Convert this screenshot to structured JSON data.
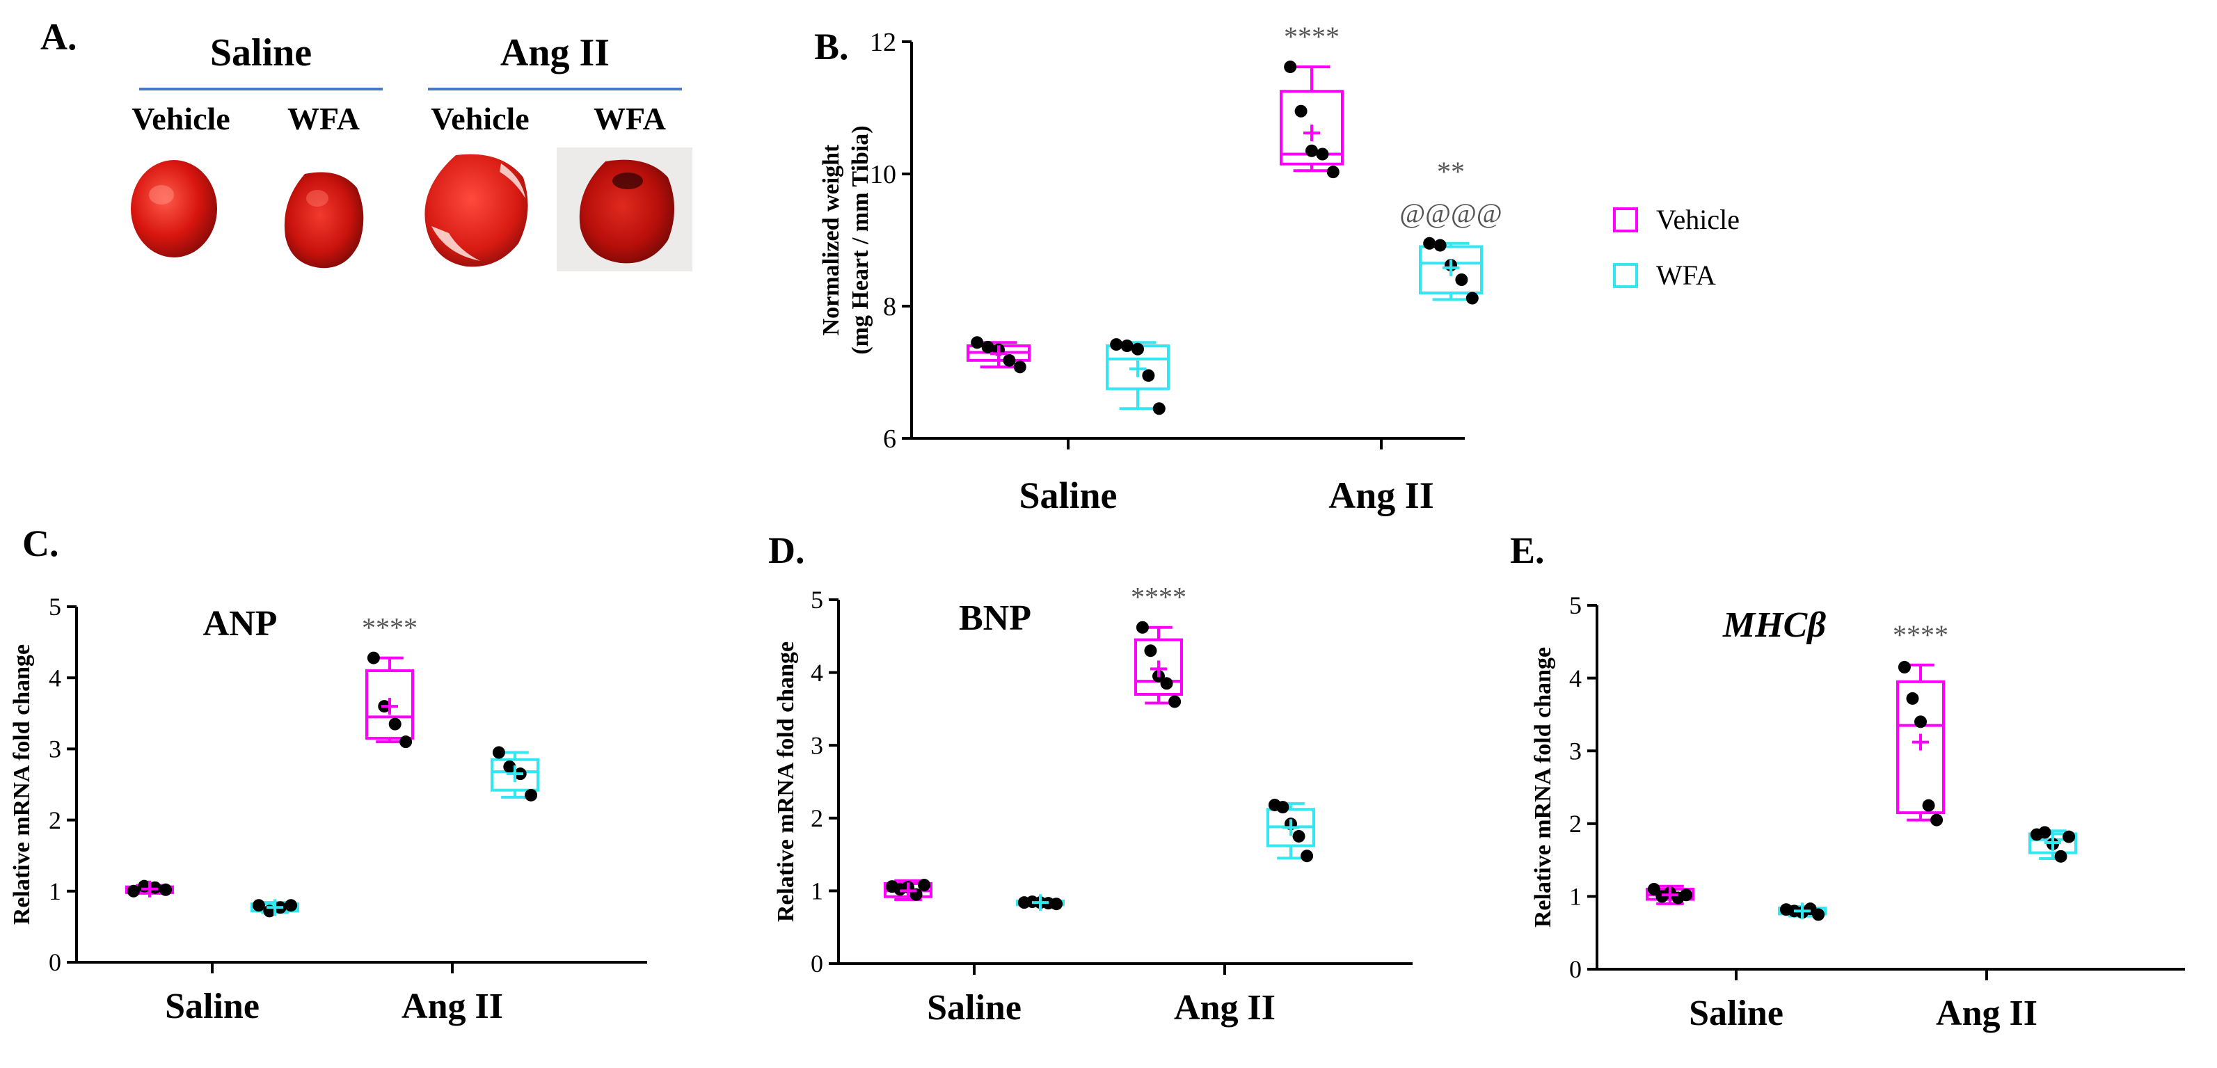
{
  "panels": {
    "A": "A.",
    "B": "B.",
    "C": "C.",
    "D": "D.",
    "E": "E."
  },
  "panelA": {
    "groups": [
      "Saline",
      "Ang II"
    ],
    "columns": [
      "Vehicle",
      "WFA",
      "Vehicle",
      "WFA"
    ]
  },
  "legend": {
    "entries": [
      {
        "label": "Vehicle",
        "color": "#ff00ff"
      },
      {
        "label": "WFA",
        "color": "#33e6f0"
      }
    ]
  },
  "colors": {
    "vehicle": "#ff00ff",
    "wfa": "#33e6f0",
    "dot": "#000000",
    "group_line": "#4a78c9"
  },
  "chart_data": [
    {
      "panel": "B",
      "type": "box",
      "title": "",
      "ylabel_line1": "Normalized weight",
      "ylabel_line2": "(mg Heart / mm Tibia)",
      "ylim": [
        6,
        12
      ],
      "yticks": [
        "6",
        "8",
        "10",
        "12"
      ],
      "categories": [
        "Saline",
        "Ang II"
      ],
      "series": [
        {
          "name": "Vehicle",
          "boxes": [
            {
              "min": 7.08,
              "q1": 7.18,
              "median": 7.3,
              "q3": 7.4,
              "max": 7.45,
              "mean": 7.28,
              "points": [
                7.45,
                7.38,
                7.34,
                7.18,
                7.08
              ]
            },
            {
              "min": 10.05,
              "q1": 10.15,
              "median": 10.3,
              "q3": 11.25,
              "max": 11.62,
              "mean": 10.62,
              "points": [
                11.62,
                10.95,
                10.35,
                10.3,
                10.03
              ]
            }
          ]
        },
        {
          "name": "WFA",
          "boxes": [
            {
              "min": 6.45,
              "q1": 6.75,
              "median": 7.2,
              "q3": 7.4,
              "max": 7.45,
              "mean": 7.05,
              "points": [
                7.42,
                7.4,
                7.35,
                6.95,
                6.45
              ]
            },
            {
              "min": 8.1,
              "q1": 8.2,
              "median": 8.65,
              "q3": 8.9,
              "max": 8.95,
              "mean": 8.58,
              "points": [
                8.95,
                8.92,
                8.62,
                8.4,
                8.12
              ]
            }
          ]
        }
      ],
      "annotations": [
        {
          "category": 1,
          "series": 0,
          "text": "****"
        },
        {
          "category": 1,
          "series": 1,
          "text": "**"
        },
        {
          "category": 1,
          "series": 1,
          "text": "@@@@",
          "row": 2
        }
      ]
    },
    {
      "panel": "C",
      "type": "box",
      "title": "ANP",
      "ylabel": "Relative mRNA fold change",
      "ylim": [
        0,
        5
      ],
      "yticks": [
        "0",
        "1",
        "2",
        "3",
        "4",
        "5"
      ],
      "categories": [
        "Saline",
        "Ang II"
      ],
      "series": [
        {
          "name": "Vehicle",
          "boxes": [
            {
              "min": 0.97,
              "q1": 0.98,
              "median": 1.02,
              "q3": 1.06,
              "max": 1.08,
              "mean": 1.03,
              "points": [
                1.0,
                1.07,
                1.05,
                1.02
              ]
            },
            {
              "min": 3.1,
              "q1": 3.15,
              "median": 3.45,
              "q3": 4.1,
              "max": 4.28,
              "mean": 3.6,
              "points": [
                4.28,
                3.6,
                3.35,
                3.1
              ]
            }
          ]
        },
        {
          "name": "WFA",
          "boxes": [
            {
              "min": 0.7,
              "q1": 0.72,
              "median": 0.77,
              "q3": 0.82,
              "max": 0.84,
              "mean": 0.77,
              "points": [
                0.8,
                0.72,
                0.77,
                0.8
              ]
            },
            {
              "min": 2.32,
              "q1": 2.42,
              "median": 2.68,
              "q3": 2.85,
              "max": 2.95,
              "mean": 2.65,
              "points": [
                2.95,
                2.75,
                2.65,
                2.35
              ]
            }
          ]
        }
      ],
      "annotations": [
        {
          "category": 1,
          "series": 0,
          "text": "****"
        }
      ]
    },
    {
      "panel": "D",
      "type": "box",
      "title": "BNP",
      "ylabel": "Relative mRNA fold change",
      "ylim": [
        0,
        5
      ],
      "yticks": [
        "0",
        "1",
        "2",
        "3",
        "4",
        "5"
      ],
      "categories": [
        "Saline",
        "Ang II"
      ],
      "series": [
        {
          "name": "Vehicle",
          "boxes": [
            {
              "min": 0.88,
              "q1": 0.92,
              "median": 1.0,
              "q3": 1.1,
              "max": 1.14,
              "mean": 1.0,
              "points": [
                1.06,
                1.02,
                1.05,
                0.95,
                1.08
              ]
            },
            {
              "min": 3.58,
              "q1": 3.7,
              "median": 3.88,
              "q3": 4.45,
              "max": 4.62,
              "mean": 4.05,
              "points": [
                4.62,
                4.3,
                3.95,
                3.85,
                3.6
              ]
            }
          ]
        },
        {
          "name": "WFA",
          "boxes": [
            {
              "min": 0.8,
              "q1": 0.81,
              "median": 0.84,
              "q3": 0.86,
              "max": 0.88,
              "mean": 0.84,
              "points": [
                0.84,
                0.85,
                0.84,
                0.83,
                0.82
              ]
            },
            {
              "min": 1.45,
              "q1": 1.62,
              "median": 1.88,
              "q3": 2.12,
              "max": 2.2,
              "mean": 1.87,
              "points": [
                2.18,
                2.15,
                1.92,
                1.75,
                1.48
              ]
            }
          ]
        }
      ],
      "annotations": [
        {
          "category": 1,
          "series": 0,
          "text": "****"
        }
      ]
    },
    {
      "panel": "E",
      "type": "box",
      "title": "MHCβ",
      "ylabel": "Relative mRNA fold change",
      "ylim": [
        0,
        5
      ],
      "yticks": [
        "0",
        "1",
        "2",
        "3",
        "4",
        "5"
      ],
      "categories": [
        "Saline",
        "Ang II"
      ],
      "series": [
        {
          "name": "Vehicle",
          "boxes": [
            {
              "min": 0.9,
              "q1": 0.96,
              "median": 1.02,
              "q3": 1.1,
              "max": 1.14,
              "mean": 1.02,
              "points": [
                1.1,
                1.0,
                1.05,
                0.98,
                1.02
              ]
            },
            {
              "min": 2.05,
              "q1": 2.15,
              "median": 3.35,
              "q3": 3.95,
              "max": 4.18,
              "mean": 3.12,
              "points": [
                4.15,
                3.72,
                3.4,
                2.25,
                2.05
              ]
            }
          ]
        },
        {
          "name": "WFA",
          "boxes": [
            {
              "min": 0.73,
              "q1": 0.76,
              "median": 0.8,
              "q3": 0.84,
              "max": 0.86,
              "mean": 0.8,
              "points": [
                0.82,
                0.8,
                0.78,
                0.83,
                0.75
              ]
            },
            {
              "min": 1.52,
              "q1": 1.6,
              "median": 1.78,
              "q3": 1.86,
              "max": 1.9,
              "mean": 1.74,
              "points": [
                1.85,
                1.88,
                1.72,
                1.55,
                1.82
              ]
            }
          ]
        }
      ],
      "annotations": [
        {
          "category": 1,
          "series": 0,
          "text": "****"
        }
      ]
    }
  ]
}
